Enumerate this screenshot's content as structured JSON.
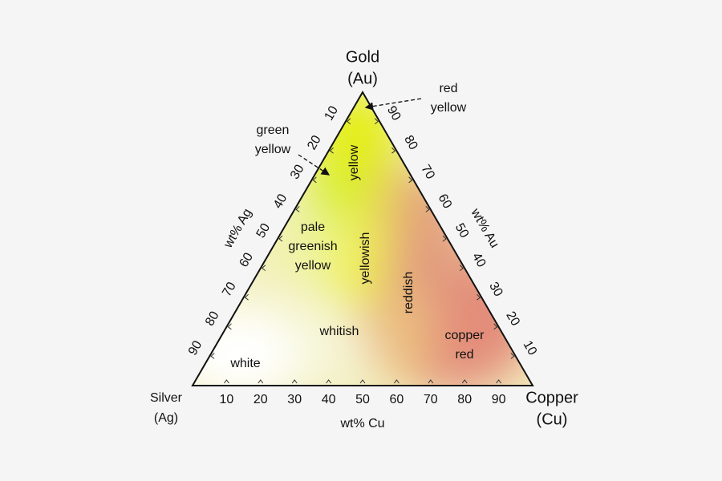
{
  "vertices": {
    "top": {
      "name": "Gold",
      "symbol": "(Au)"
    },
    "left": {
      "name": "Silver",
      "symbol": "(Ag)"
    },
    "right": {
      "name": "Copper",
      "symbol": "(Cu)"
    }
  },
  "axes": {
    "bottom": {
      "label": "wt% Cu",
      "ticks": [
        10,
        20,
        30,
        40,
        50,
        60,
        70,
        80,
        90
      ]
    },
    "left": {
      "label": "wt% Ag",
      "ticks": [
        10,
        20,
        30,
        40,
        50,
        60,
        70,
        80,
        90
      ]
    },
    "right": {
      "label": "wt% Au",
      "ticks": [
        10,
        20,
        30,
        40,
        50,
        60,
        70,
        80,
        90
      ]
    }
  },
  "regions": [
    {
      "lines": [
        "yellow"
      ]
    },
    {
      "lines": [
        "pale",
        "greenish",
        "yellow"
      ]
    },
    {
      "lines": [
        "yellowish"
      ]
    },
    {
      "lines": [
        "reddish"
      ]
    },
    {
      "lines": [
        "whitish"
      ]
    },
    {
      "lines": [
        "copper",
        "red"
      ]
    },
    {
      "lines": [
        "white"
      ]
    }
  ],
  "callouts": [
    {
      "lines": [
        "red",
        "yellow"
      ]
    },
    {
      "lines": [
        "green",
        "yellow"
      ]
    }
  ]
}
